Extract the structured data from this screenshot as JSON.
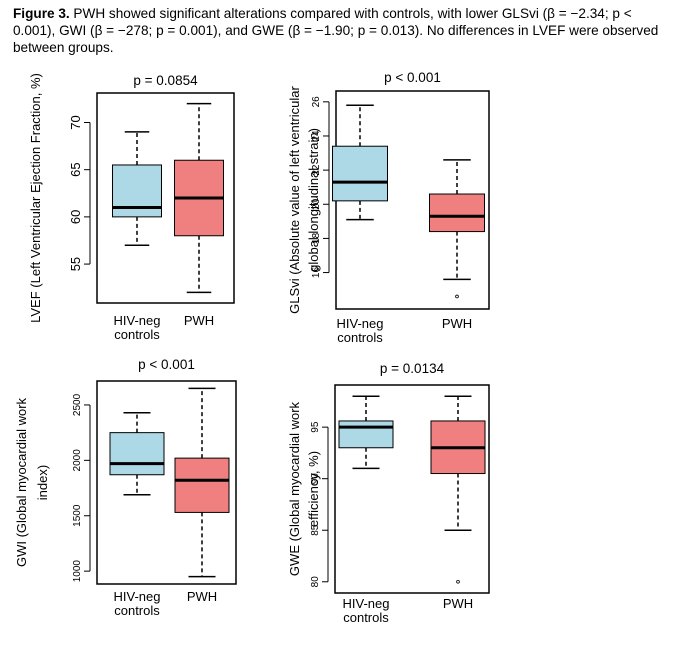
{
  "caption": {
    "label": "Figure 3.",
    "text": " PWH showed significant alterations compared with controls, with lower GLSvi (β = −2.34; p < 0.001), GWI (β = −278; p = 0.001), and GWE (β = −1.90; p = 0.013). No differences in LVEF were observed between groups."
  },
  "colors": {
    "controls": "#add8e6",
    "pwh": "#f08080"
  },
  "chart_data": [
    {
      "type": "box",
      "title": "p = 0.0854",
      "ylabel": [
        "LVEF (Left Ventricular Ejection Fraction, %)"
      ],
      "categories": [
        [
          "HIV-neg",
          "controls"
        ],
        [
          "PWH"
        ]
      ],
      "yticks": [
        55,
        60,
        65,
        70
      ],
      "ylim": [
        51.3,
        72.7
      ],
      "series": [
        {
          "name": "HIV-neg controls",
          "min": 57,
          "q1": 60,
          "median": 61,
          "q3": 65.5,
          "max": 69,
          "outliers": []
        },
        {
          "name": "PWH",
          "min": 52,
          "q1": 58,
          "median": 62,
          "q3": 66,
          "max": 72,
          "outliers": []
        }
      ]
    },
    {
      "type": "box",
      "title": "p < 0.001",
      "ylabel": [
        "GLSvi (Absolute value of left ventricular",
        "global longitudinal strain)"
      ],
      "categories": [
        [
          "HIV-neg",
          "controls"
        ],
        [
          "PWH"
        ]
      ],
      "yticks": [
        16,
        18,
        20,
        22,
        24,
        26
      ],
      "ylim": [
        14.1,
        26.4
      ],
      "series": [
        {
          "name": "HIV-neg controls",
          "min": 19.1,
          "q1": 20.2,
          "median": 21.3,
          "q3": 23.4,
          "max": 25.8,
          "outliers": []
        },
        {
          "name": "PWH",
          "min": 15.6,
          "q1": 18.4,
          "median": 19.3,
          "q3": 20.6,
          "max": 22.6,
          "outliers": [
            14.6
          ]
        }
      ]
    },
    {
      "type": "box",
      "title": "p < 0.001",
      "ylabel": [
        "GWI (Global myocardial work",
        "index)"
      ],
      "categories": [
        [
          "HIV-neg",
          "controls"
        ],
        [
          "PWH"
        ]
      ],
      "yticks": [
        1000,
        1500,
        2000,
        2500
      ],
      "ylim": [
        920,
        2680
      ],
      "series": [
        {
          "name": "HIV-neg controls",
          "min": 1690,
          "q1": 1870,
          "median": 1970,
          "q3": 2250,
          "max": 2430,
          "outliers": []
        },
        {
          "name": "PWH",
          "min": 950,
          "q1": 1530,
          "median": 1820,
          "q3": 2020,
          "max": 2650,
          "outliers": []
        }
      ]
    },
    {
      "type": "box",
      "title": "p = 0.0134",
      "ylabel": [
        "GWE (Global myocardial work",
        "efficiency, %)"
      ],
      "categories": [
        [
          "HIV-neg",
          "controls"
        ],
        [
          "PWH"
        ]
      ],
      "yticks": [
        80,
        85,
        90,
        95
      ],
      "ylim": [
        79.3,
        98.7
      ],
      "series": [
        {
          "name": "HIV-neg controls",
          "min": 91,
          "q1": 93,
          "median": 95,
          "q3": 95.6,
          "max": 98,
          "outliers": []
        },
        {
          "name": "PWH",
          "min": 85,
          "q1": 90.5,
          "median": 93,
          "q3": 95.6,
          "max": 98,
          "outliers": [
            80
          ]
        }
      ]
    }
  ]
}
